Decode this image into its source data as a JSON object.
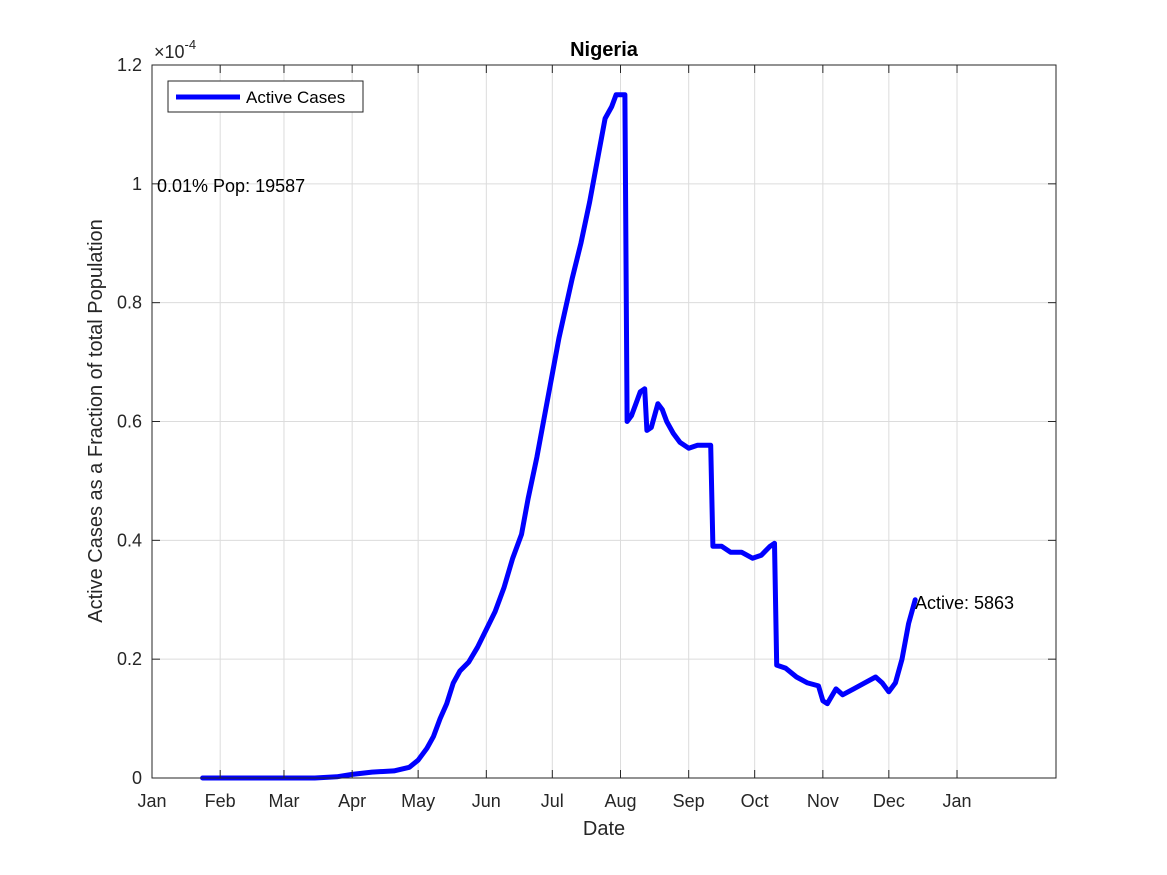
{
  "chart_data": {
    "type": "line",
    "title": "Nigeria",
    "xlabel": "Date",
    "ylabel": "Active Cases as a Fraction of total Population",
    "y_exponent_label": "×10",
    "y_exponent_value": "-4",
    "ylim": [
      0,
      1.2
    ],
    "xlim": [
      "2020-01-01",
      "2021-02-15"
    ],
    "grid": true,
    "legend_position": "top-left",
    "x_ticks": [
      {
        "date": "2020-01-01",
        "label": "Jan"
      },
      {
        "date": "2020-02-01",
        "label": "Feb"
      },
      {
        "date": "2020-03-01",
        "label": "Mar"
      },
      {
        "date": "2020-04-01",
        "label": "Apr"
      },
      {
        "date": "2020-05-01",
        "label": "May"
      },
      {
        "date": "2020-06-01",
        "label": "Jun"
      },
      {
        "date": "2020-07-01",
        "label": "Jul"
      },
      {
        "date": "2020-08-01",
        "label": "Aug"
      },
      {
        "date": "2020-09-01",
        "label": "Sep"
      },
      {
        "date": "2020-10-01",
        "label": "Oct"
      },
      {
        "date": "2020-11-01",
        "label": "Nov"
      },
      {
        "date": "2020-12-01",
        "label": "Dec"
      },
      {
        "date": "2021-01-01",
        "label": "Jan"
      }
    ],
    "y_ticks": [
      {
        "value": 0,
        "label": "0"
      },
      {
        "value": 0.2,
        "label": "0.2"
      },
      {
        "value": 0.4,
        "label": "0.4"
      },
      {
        "value": 0.6,
        "label": "0.6"
      },
      {
        "value": 0.8,
        "label": "0.8"
      },
      {
        "value": 1.0,
        "label": "1"
      },
      {
        "value": 1.2,
        "label": "1.2"
      }
    ],
    "series": [
      {
        "name": "Active Cases",
        "color": "#0000ff",
        "points": [
          [
            "2020-01-24",
            0
          ],
          [
            "2020-02-15",
            0
          ],
          [
            "2020-03-15",
            0
          ],
          [
            "2020-03-25",
            0.002
          ],
          [
            "2020-04-01",
            0.006
          ],
          [
            "2020-04-10",
            0.01
          ],
          [
            "2020-04-20",
            0.012
          ],
          [
            "2020-04-27",
            0.018
          ],
          [
            "2020-05-01",
            0.03
          ],
          [
            "2020-05-05",
            0.05
          ],
          [
            "2020-05-08",
            0.07
          ],
          [
            "2020-05-11",
            0.1
          ],
          [
            "2020-05-14",
            0.125
          ],
          [
            "2020-05-17",
            0.16
          ],
          [
            "2020-05-20",
            0.18
          ],
          [
            "2020-05-24",
            0.195
          ],
          [
            "2020-05-28",
            0.22
          ],
          [
            "2020-06-01",
            0.25
          ],
          [
            "2020-06-05",
            0.28
          ],
          [
            "2020-06-09",
            0.32
          ],
          [
            "2020-06-13",
            0.37
          ],
          [
            "2020-06-17",
            0.41
          ],
          [
            "2020-06-20",
            0.47
          ],
          [
            "2020-06-24",
            0.54
          ],
          [
            "2020-06-28",
            0.62
          ],
          [
            "2020-07-01",
            0.68
          ],
          [
            "2020-07-04",
            0.74
          ],
          [
            "2020-07-07",
            0.79
          ],
          [
            "2020-07-10",
            0.84
          ],
          [
            "2020-07-14",
            0.9
          ],
          [
            "2020-07-18",
            0.97
          ],
          [
            "2020-07-22",
            1.05
          ],
          [
            "2020-07-25",
            1.11
          ],
          [
            "2020-07-28",
            1.13
          ],
          [
            "2020-07-30",
            1.15
          ],
          [
            "2020-08-01",
            1.15
          ],
          [
            "2020-08-03",
            1.15
          ],
          [
            "2020-08-04",
            0.6
          ],
          [
            "2020-08-06",
            0.61
          ],
          [
            "2020-08-08",
            0.63
          ],
          [
            "2020-08-10",
            0.65
          ],
          [
            "2020-08-12",
            0.655
          ],
          [
            "2020-08-13",
            0.585
          ],
          [
            "2020-08-15",
            0.59
          ],
          [
            "2020-08-18",
            0.63
          ],
          [
            "2020-08-20",
            0.62
          ],
          [
            "2020-08-22",
            0.6
          ],
          [
            "2020-08-25",
            0.58
          ],
          [
            "2020-08-28",
            0.565
          ],
          [
            "2020-09-01",
            0.555
          ],
          [
            "2020-09-05",
            0.56
          ],
          [
            "2020-09-11",
            0.56
          ],
          [
            "2020-09-12",
            0.39
          ],
          [
            "2020-09-16",
            0.39
          ],
          [
            "2020-09-20",
            0.38
          ],
          [
            "2020-09-25",
            0.38
          ],
          [
            "2020-09-30",
            0.37
          ],
          [
            "2020-10-04",
            0.375
          ],
          [
            "2020-10-08",
            0.39
          ],
          [
            "2020-10-10",
            0.395
          ],
          [
            "2020-10-11",
            0.19
          ],
          [
            "2020-10-15",
            0.185
          ],
          [
            "2020-10-20",
            0.17
          ],
          [
            "2020-10-25",
            0.16
          ],
          [
            "2020-10-30",
            0.155
          ],
          [
            "2020-11-01",
            0.13
          ],
          [
            "2020-11-03",
            0.125
          ],
          [
            "2020-11-07",
            0.15
          ],
          [
            "2020-11-10",
            0.14
          ],
          [
            "2020-11-15",
            0.15
          ],
          [
            "2020-11-20",
            0.16
          ],
          [
            "2020-11-25",
            0.17
          ],
          [
            "2020-11-28",
            0.16
          ],
          [
            "2020-12-01",
            0.145
          ],
          [
            "2020-12-04",
            0.16
          ],
          [
            "2020-12-07",
            0.2
          ],
          [
            "2020-12-10",
            0.26
          ],
          [
            "2020-12-13",
            0.3
          ]
        ]
      }
    ],
    "annotations": [
      {
        "text": "0.01% Pop: 19587"
      },
      {
        "text": "Active: 5863"
      }
    ]
  }
}
